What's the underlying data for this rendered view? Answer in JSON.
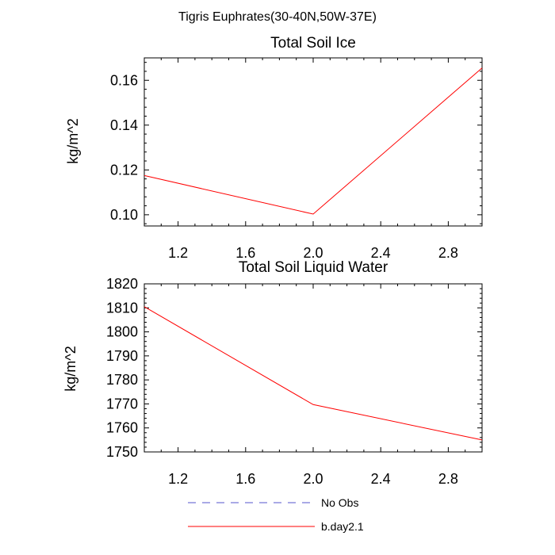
{
  "figure": {
    "main_title": "Tigris Euphrates(30-40N,50W-37E)"
  },
  "legend": {
    "items": [
      {
        "label": "No Obs",
        "color": "#5555cc",
        "style": "dashed"
      },
      {
        "label": "b.day2.1",
        "color": "#ff0000",
        "style": "solid"
      }
    ]
  },
  "chart_data": [
    {
      "type": "line",
      "title": "Total Soil Ice",
      "xlabel": "",
      "ylabel": "kg/m^2",
      "xlim": [
        1.0,
        3.0
      ],
      "ylim": [
        0.095,
        0.17
      ],
      "xticks": [
        1.2,
        1.6,
        2.0,
        2.4,
        2.8
      ],
      "xtick_labels": [
        "1.2",
        "1.6",
        "2.0",
        "2.4",
        "2.8"
      ],
      "yticks": [
        0.1,
        0.12,
        0.14,
        0.16
      ],
      "ytick_labels": [
        "0.10",
        "0.12",
        "0.14",
        "0.16"
      ],
      "series": [
        {
          "name": "b.day2.1",
          "color": "#ff0000",
          "x": [
            1.0,
            2.0,
            3.0
          ],
          "y": [
            0.1175,
            0.1003,
            0.1655
          ]
        }
      ]
    },
    {
      "type": "line",
      "title": "Total Soil Liquid Water",
      "xlabel": "",
      "ylabel": "kg/m^2",
      "xlim": [
        1.0,
        3.0
      ],
      "ylim": [
        1750,
        1820
      ],
      "xticks": [
        1.2,
        1.6,
        2.0,
        2.4,
        2.8
      ],
      "xtick_labels": [
        "1.2",
        "1.6",
        "2.0",
        "2.4",
        "2.8"
      ],
      "yticks": [
        1750,
        1760,
        1770,
        1780,
        1790,
        1800,
        1810,
        1820
      ],
      "ytick_labels": [
        "1750",
        "1760",
        "1770",
        "1780",
        "1790",
        "1800",
        "1810",
        "1820"
      ],
      "series": [
        {
          "name": "b.day2.1",
          "color": "#ff0000",
          "x": [
            1.0,
            2.0,
            3.0
          ],
          "y": [
            1810.5,
            1769.7,
            1755.0
          ]
        }
      ]
    }
  ]
}
